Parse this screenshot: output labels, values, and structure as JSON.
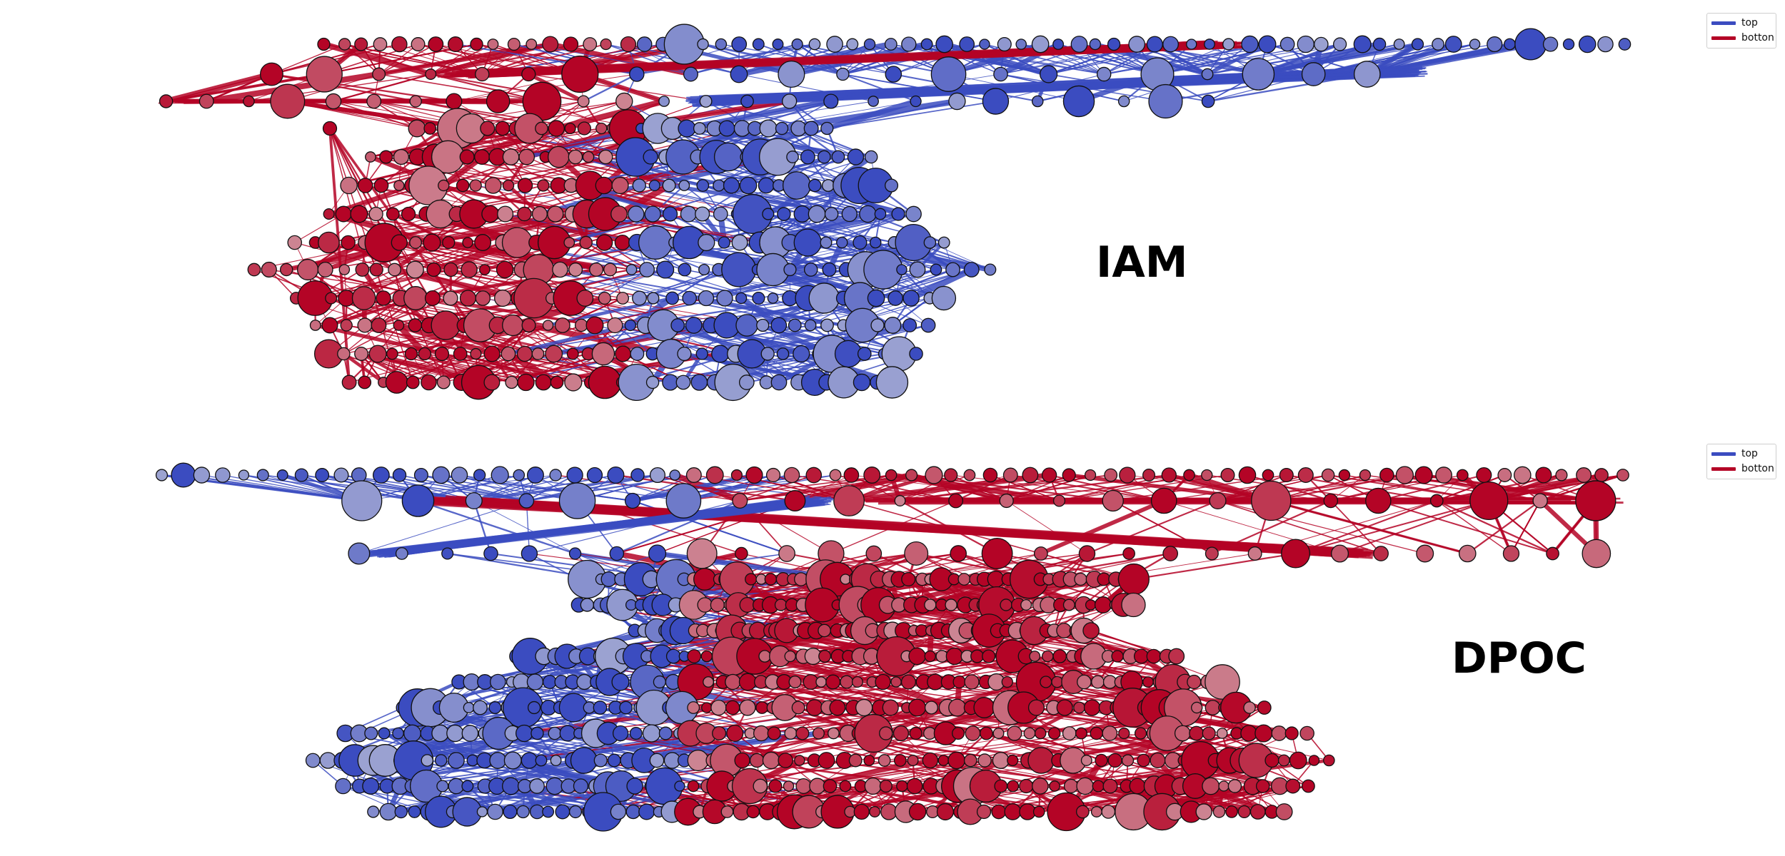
{
  "colors": {
    "top": "#3b4cc0",
    "botton": "#b40426",
    "neutral": "#dddddd",
    "node_stroke": "#111111",
    "background": "#ffffff"
  },
  "figures": [
    {
      "id": "iam",
      "title": "IAM",
      "legend": [
        {
          "label": "top",
          "color": "#3b4cc0"
        },
        {
          "label": "botton",
          "color": "#b40426"
        }
      ]
    },
    {
      "id": "dpoc",
      "title": "DPOC",
      "legend": [
        {
          "label": "top",
          "color": "#3b4cc0"
        },
        {
          "label": "botton",
          "color": "#b40426"
        }
      ]
    }
  ]
}
